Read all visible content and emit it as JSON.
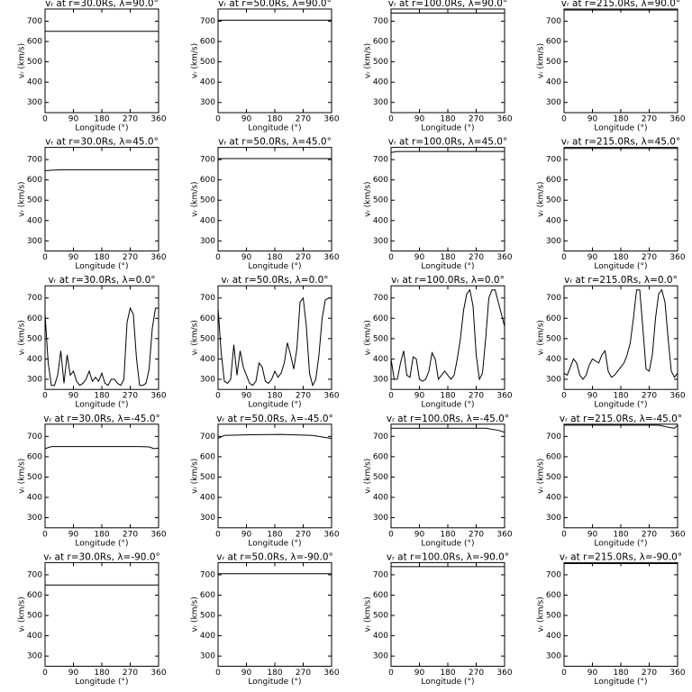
{
  "chart_data": [
    {
      "type": "line",
      "title": "vᵣ at r=30.0Rs, λ=90.0°",
      "xlabel": "Longitude (°)",
      "ylabel": "vᵣ (km/s)",
      "x": [
        0,
        360
      ],
      "values": [
        650,
        650
      ],
      "xlim": [
        0,
        360
      ],
      "ylim": [
        250,
        760
      ],
      "xticks": [
        0,
        90,
        180,
        270,
        360
      ],
      "yticks": [
        300,
        400,
        500,
        600,
        700
      ],
      "color": "#000000"
    },
    {
      "type": "line",
      "title": "vᵣ at r=50.0Rs, λ=90.0°",
      "xlabel": "Longitude (°)",
      "ylabel": "vᵣ (km/s)",
      "x": [
        0,
        360
      ],
      "values": [
        705,
        705
      ],
      "xlim": [
        0,
        360
      ],
      "ylim": [
        250,
        760
      ],
      "xticks": [
        0,
        90,
        180,
        270,
        360
      ],
      "yticks": [
        300,
        400,
        500,
        600,
        700
      ],
      "color": "#000000"
    },
    {
      "type": "line",
      "title": "vᵣ at r=100.0Rs, λ=90.0°",
      "xlabel": "Longitude (°)",
      "ylabel": "vᵣ (km/s)",
      "x": [
        0,
        360
      ],
      "values": [
        740,
        740
      ],
      "xlim": [
        0,
        360
      ],
      "ylim": [
        250,
        760
      ],
      "xticks": [
        0,
        90,
        180,
        270,
        360
      ],
      "yticks": [
        300,
        400,
        500,
        600,
        700
      ],
      "color": "#000000"
    },
    {
      "type": "line",
      "title": "vᵣ at r=215.0Rs, λ=90.0°",
      "xlabel": "Longitude (°)",
      "ylabel": "vᵣ (km/s)",
      "x": [
        0,
        360
      ],
      "values": [
        755,
        755
      ],
      "xlim": [
        0,
        360
      ],
      "ylim": [
        250,
        760
      ],
      "xticks": [
        0,
        90,
        180,
        270,
        360
      ],
      "yticks": [
        300,
        400,
        500,
        600,
        700
      ],
      "color": "#000000"
    },
    {
      "type": "line",
      "title": "vᵣ at r=30.0Rs, λ=45.0°",
      "xlabel": "Longitude (°)",
      "ylabel": "vᵣ (km/s)",
      "x": [
        0,
        20,
        60,
        360
      ],
      "values": [
        645,
        648,
        650,
        650
      ],
      "xlim": [
        0,
        360
      ],
      "ylim": [
        250,
        760
      ],
      "xticks": [
        0,
        90,
        180,
        270,
        360
      ],
      "yticks": [
        300,
        400,
        500,
        600,
        700
      ],
      "color": "#000000"
    },
    {
      "type": "line",
      "title": "vᵣ at r=50.0Rs, λ=45.0°",
      "xlabel": "Longitude (°)",
      "ylabel": "vᵣ (km/s)",
      "x": [
        0,
        360
      ],
      "values": [
        705,
        705
      ],
      "xlim": [
        0,
        360
      ],
      "ylim": [
        250,
        760
      ],
      "xticks": [
        0,
        90,
        180,
        270,
        360
      ],
      "yticks": [
        300,
        400,
        500,
        600,
        700
      ],
      "color": "#000000"
    },
    {
      "type": "line",
      "title": "vᵣ at r=100.0Rs, λ=45.0°",
      "xlabel": "Longitude (°)",
      "ylabel": "vᵣ (km/s)",
      "x": [
        0,
        20,
        360
      ],
      "values": [
        735,
        740,
        740
      ],
      "xlim": [
        0,
        360
      ],
      "ylim": [
        250,
        760
      ],
      "xticks": [
        0,
        90,
        180,
        270,
        360
      ],
      "yticks": [
        300,
        400,
        500,
        600,
        700
      ],
      "color": "#000000"
    },
    {
      "type": "line",
      "title": "vᵣ at r=215.0Rs, λ=45.0°",
      "xlabel": "Longitude (°)",
      "ylabel": "vᵣ (km/s)",
      "x": [
        0,
        360
      ],
      "values": [
        755,
        755
      ],
      "xlim": [
        0,
        360
      ],
      "ylim": [
        250,
        760
      ],
      "xticks": [
        0,
        90,
        180,
        270,
        360
      ],
      "yticks": [
        300,
        400,
        500,
        600,
        700
      ],
      "color": "#000000"
    },
    {
      "type": "line",
      "title": "vᵣ at r=30.0Rs, λ=0.0°",
      "xlabel": "Longitude (°)",
      "ylabel": "vᵣ (km/s)",
      "x": [
        0,
        10,
        20,
        30,
        40,
        50,
        60,
        70,
        80,
        90,
        100,
        110,
        120,
        130,
        140,
        150,
        160,
        170,
        180,
        190,
        200,
        210,
        220,
        230,
        240,
        250,
        260,
        270,
        280,
        290,
        300,
        310,
        320,
        330,
        340,
        350,
        360
      ],
      "values": [
        620,
        380,
        270,
        270,
        320,
        440,
        280,
        420,
        320,
        340,
        290,
        270,
        280,
        300,
        340,
        290,
        310,
        290,
        330,
        280,
        270,
        300,
        300,
        280,
        270,
        300,
        580,
        650,
        620,
        400,
        270,
        270,
        280,
        350,
        550,
        650,
        650
      ],
      "xlim": [
        0,
        360
      ],
      "ylim": [
        250,
        760
      ],
      "xticks": [
        0,
        90,
        180,
        270,
        360
      ],
      "yticks": [
        300,
        400,
        500,
        600,
        700
      ],
      "color": "#000000"
    },
    {
      "type": "line",
      "title": "vᵣ at r=50.0Rs, λ=0.0°",
      "xlabel": "Longitude (°)",
      "ylabel": "vᵣ (km/s)",
      "x": [
        0,
        10,
        20,
        30,
        40,
        50,
        60,
        70,
        80,
        90,
        100,
        110,
        120,
        130,
        140,
        150,
        160,
        170,
        180,
        190,
        200,
        210,
        220,
        230,
        240,
        250,
        260,
        270,
        280,
        290,
        300,
        310,
        320,
        330,
        340,
        350,
        360
      ],
      "values": [
        650,
        430,
        290,
        280,
        300,
        470,
        320,
        440,
        360,
        320,
        280,
        270,
        290,
        380,
        360,
        290,
        280,
        300,
        340,
        310,
        330,
        380,
        480,
        420,
        350,
        450,
        680,
        700,
        560,
        330,
        270,
        300,
        420,
        600,
        690,
        700,
        700
      ],
      "xlim": [
        0,
        360
      ],
      "ylim": [
        250,
        760
      ],
      "xticks": [
        0,
        90,
        180,
        270,
        360
      ],
      "yticks": [
        300,
        400,
        500,
        600,
        700
      ],
      "color": "#000000"
    },
    {
      "type": "line",
      "title": "vᵣ at r=100.0Rs, λ=0.0°",
      "xlabel": "Longitude (°)",
      "ylabel": "vᵣ (km/s)",
      "x": [
        0,
        10,
        20,
        30,
        40,
        50,
        60,
        70,
        80,
        90,
        100,
        110,
        120,
        130,
        140,
        150,
        160,
        170,
        180,
        190,
        200,
        210,
        220,
        230,
        240,
        250,
        260,
        270,
        280,
        290,
        300,
        310,
        320,
        330,
        340,
        350,
        360
      ],
      "values": [
        400,
        300,
        300,
        380,
        440,
        320,
        310,
        410,
        400,
        300,
        290,
        300,
        340,
        430,
        400,
        300,
        320,
        340,
        320,
        300,
        320,
        400,
        500,
        640,
        720,
        740,
        660,
        420,
        300,
        330,
        500,
        700,
        740,
        740,
        680,
        620,
        560
      ],
      "xlim": [
        0,
        360
      ],
      "ylim": [
        250,
        760
      ],
      "xticks": [
        0,
        90,
        180,
        270,
        360
      ],
      "yticks": [
        300,
        400,
        500,
        600,
        700
      ],
      "color": "#000000"
    },
    {
      "type": "line",
      "title": "vᵣ at r=215.0Rs, λ=0.0°",
      "xlabel": "Longitude (°)",
      "ylabel": "vᵣ (km/s)",
      "x": [
        0,
        10,
        20,
        30,
        40,
        50,
        60,
        70,
        80,
        90,
        100,
        110,
        120,
        130,
        140,
        150,
        160,
        170,
        180,
        190,
        200,
        210,
        220,
        230,
        240,
        250,
        260,
        270,
        280,
        290,
        300,
        310,
        320,
        330,
        340,
        350,
        360
      ],
      "values": [
        330,
        320,
        360,
        400,
        380,
        320,
        300,
        320,
        370,
        400,
        390,
        380,
        420,
        440,
        340,
        310,
        320,
        340,
        360,
        380,
        420,
        480,
        600,
        740,
        740,
        550,
        350,
        340,
        420,
        600,
        720,
        740,
        680,
        500,
        340,
        310,
        330
      ],
      "xlim": [
        0,
        360
      ],
      "ylim": [
        250,
        760
      ],
      "xticks": [
        0,
        90,
        180,
        270,
        360
      ],
      "yticks": [
        300,
        400,
        500,
        600,
        700
      ],
      "color": "#000000"
    },
    {
      "type": "line",
      "title": "vᵣ at r=30.0Rs, λ=-45.0°",
      "xlabel": "Longitude (°)",
      "ylabel": "vᵣ (km/s)",
      "x": [
        0,
        20,
        300,
        330,
        345,
        360
      ],
      "values": [
        640,
        650,
        650,
        648,
        640,
        642
      ],
      "xlim": [
        0,
        360
      ],
      "ylim": [
        250,
        760
      ],
      "xticks": [
        0,
        90,
        180,
        270,
        360
      ],
      "yticks": [
        300,
        400,
        500,
        600,
        700
      ],
      "color": "#000000"
    },
    {
      "type": "line",
      "title": "vᵣ at r=50.0Rs, λ=-45.0°",
      "xlabel": "Longitude (°)",
      "ylabel": "vᵣ (km/s)",
      "x": [
        0,
        20,
        100,
        200,
        300,
        340,
        360
      ],
      "values": [
        690,
        705,
        708,
        710,
        705,
        695,
        690
      ],
      "xlim": [
        0,
        360
      ],
      "ylim": [
        250,
        760
      ],
      "xticks": [
        0,
        90,
        180,
        270,
        360
      ],
      "yticks": [
        300,
        400,
        500,
        600,
        700
      ],
      "color": "#000000"
    },
    {
      "type": "line",
      "title": "vᵣ at r=100.0Rs, λ=-45.0°",
      "xlabel": "Longitude (°)",
      "ylabel": "vᵣ (km/s)",
      "x": [
        0,
        300,
        340,
        360
      ],
      "values": [
        740,
        740,
        730,
        720
      ],
      "xlim": [
        0,
        360
      ],
      "ylim": [
        250,
        760
      ],
      "xticks": [
        0,
        90,
        180,
        270,
        360
      ],
      "yticks": [
        300,
        400,
        500,
        600,
        700
      ],
      "color": "#000000"
    },
    {
      "type": "line",
      "title": "vᵣ at r=215.0Rs, λ=-45.0°",
      "xlabel": "Longitude (°)",
      "ylabel": "vᵣ (km/s)",
      "x": [
        0,
        300,
        330,
        350,
        360
      ],
      "values": [
        755,
        755,
        745,
        740,
        755
      ],
      "xlim": [
        0,
        360
      ],
      "ylim": [
        250,
        760
      ],
      "xticks": [
        0,
        90,
        180,
        270,
        360
      ],
      "yticks": [
        300,
        400,
        500,
        600,
        700
      ],
      "color": "#000000"
    },
    {
      "type": "line",
      "title": "vᵣ at r=30.0Rs, λ=-90.0°",
      "xlabel": "Longitude (°)",
      "ylabel": "vᵣ (km/s)",
      "x": [
        0,
        360
      ],
      "values": [
        650,
        650
      ],
      "xlim": [
        0,
        360
      ],
      "ylim": [
        250,
        760
      ],
      "xticks": [
        0,
        90,
        180,
        270,
        360
      ],
      "yticks": [
        300,
        400,
        500,
        600,
        700
      ],
      "color": "#000000"
    },
    {
      "type": "line",
      "title": "vᵣ at r=50.0Rs, λ=-90.0°",
      "xlabel": "Longitude (°)",
      "ylabel": "vᵣ (km/s)",
      "x": [
        0,
        360
      ],
      "values": [
        705,
        705
      ],
      "xlim": [
        0,
        360
      ],
      "ylim": [
        250,
        760
      ],
      "xticks": [
        0,
        90,
        180,
        270,
        360
      ],
      "yticks": [
        300,
        400,
        500,
        600,
        700
      ],
      "color": "#000000"
    },
    {
      "type": "line",
      "title": "vᵣ at r=100.0Rs, λ=-90.0°",
      "xlabel": "Longitude (°)",
      "ylabel": "vᵣ (km/s)",
      "x": [
        0,
        360
      ],
      "values": [
        740,
        740
      ],
      "xlim": [
        0,
        360
      ],
      "ylim": [
        250,
        760
      ],
      "xticks": [
        0,
        90,
        180,
        270,
        360
      ],
      "yticks": [
        300,
        400,
        500,
        600,
        700
      ],
      "color": "#000000"
    },
    {
      "type": "line",
      "title": "vᵣ at r=215.0Rs, λ=-90.0°",
      "xlabel": "Longitude (°)",
      "ylabel": "vᵣ (km/s)",
      "x": [
        0,
        360
      ],
      "values": [
        755,
        755
      ],
      "xlim": [
        0,
        360
      ],
      "ylim": [
        250,
        760
      ],
      "xticks": [
        0,
        90,
        180,
        270,
        360
      ],
      "yticks": [
        300,
        400,
        500,
        600,
        700
      ],
      "color": "#000000"
    }
  ]
}
